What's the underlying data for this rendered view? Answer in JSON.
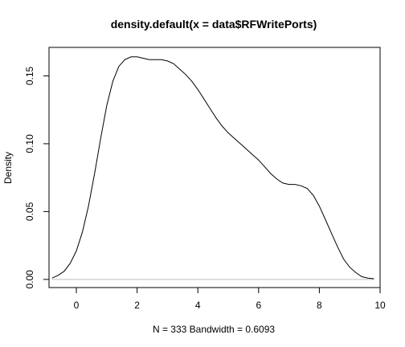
{
  "chart_data": {
    "type": "line",
    "title": "density.default(x = data$RFWritePorts)",
    "xlabel": "N = 333   Bandwidth = 0.6093",
    "ylabel": "Density",
    "xlim": [
      -0.9,
      10.0
    ],
    "ylim": [
      -0.006,
      0.171
    ],
    "xticks": [
      0,
      2,
      4,
      6,
      8,
      10
    ],
    "xtick_labels": [
      "0",
      "2",
      "4",
      "6",
      "8",
      "10"
    ],
    "yticks": [
      0.0,
      0.05,
      0.1,
      0.15
    ],
    "ytick_labels": [
      "0.00",
      "0.05",
      "0.10",
      "0.15"
    ],
    "grid": false,
    "baseline_y": 0,
    "series": [
      {
        "x": [
          -0.8,
          -0.6,
          -0.4,
          -0.2,
          0.0,
          0.2,
          0.4,
          0.6,
          0.8,
          1.0,
          1.2,
          1.4,
          1.6,
          1.8,
          2.0,
          2.2,
          2.4,
          2.6,
          2.8,
          3.0,
          3.2,
          3.4,
          3.6,
          3.8,
          4.0,
          4.2,
          4.4,
          4.6,
          4.8,
          5.0,
          5.2,
          5.4,
          5.6,
          5.8,
          6.0,
          6.2,
          6.4,
          6.6,
          6.8,
          7.0,
          7.2,
          7.4,
          7.6,
          7.8,
          8.0,
          8.2,
          8.4,
          8.6,
          8.8,
          9.0,
          9.2,
          9.4,
          9.6,
          9.8
        ],
        "y": [
          0.001,
          0.003,
          0.006,
          0.012,
          0.021,
          0.035,
          0.054,
          0.078,
          0.104,
          0.128,
          0.146,
          0.157,
          0.162,
          0.164,
          0.164,
          0.163,
          0.162,
          0.162,
          0.162,
          0.161,
          0.159,
          0.155,
          0.151,
          0.146,
          0.14,
          0.133,
          0.126,
          0.119,
          0.113,
          0.108,
          0.104,
          0.1,
          0.096,
          0.092,
          0.088,
          0.083,
          0.078,
          0.074,
          0.071,
          0.07,
          0.07,
          0.069,
          0.067,
          0.062,
          0.054,
          0.044,
          0.034,
          0.024,
          0.015,
          0.009,
          0.005,
          0.002,
          0.001,
          0.0005
        ]
      }
    ]
  }
}
